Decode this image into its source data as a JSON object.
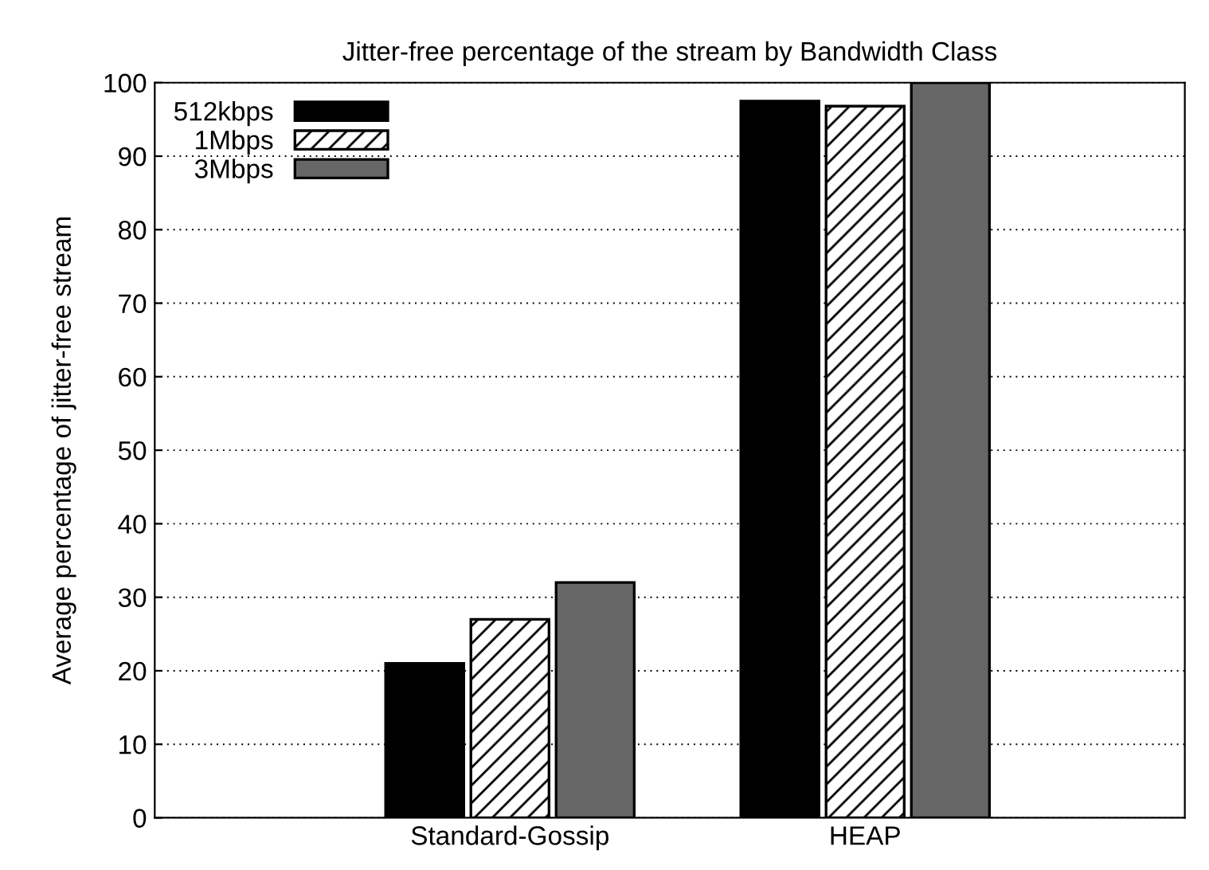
{
  "chart_data": {
    "type": "bar",
    "title": "Jitter-free percentage of the stream by Bandwidth Class",
    "ylabel": "Average percentage of jitter-free stream",
    "categories": [
      "Standard-Gossip",
      "HEAP"
    ],
    "series": [
      {
        "name": "512kbps",
        "color": "#000000",
        "values": [
          21,
          97.5
        ]
      },
      {
        "name": "1Mbps",
        "color": "#000000",
        "values": [
          27,
          96.8
        ]
      },
      {
        "name": "3Mbps",
        "color": "#666666",
        "values": [
          32,
          100
        ]
      }
    ],
    "ylim": [
      0,
      100
    ],
    "yticks": [
      0,
      10,
      20,
      30,
      40,
      50,
      60,
      70,
      80,
      90,
      100
    ],
    "grid": "y",
    "legend": "top left"
  }
}
